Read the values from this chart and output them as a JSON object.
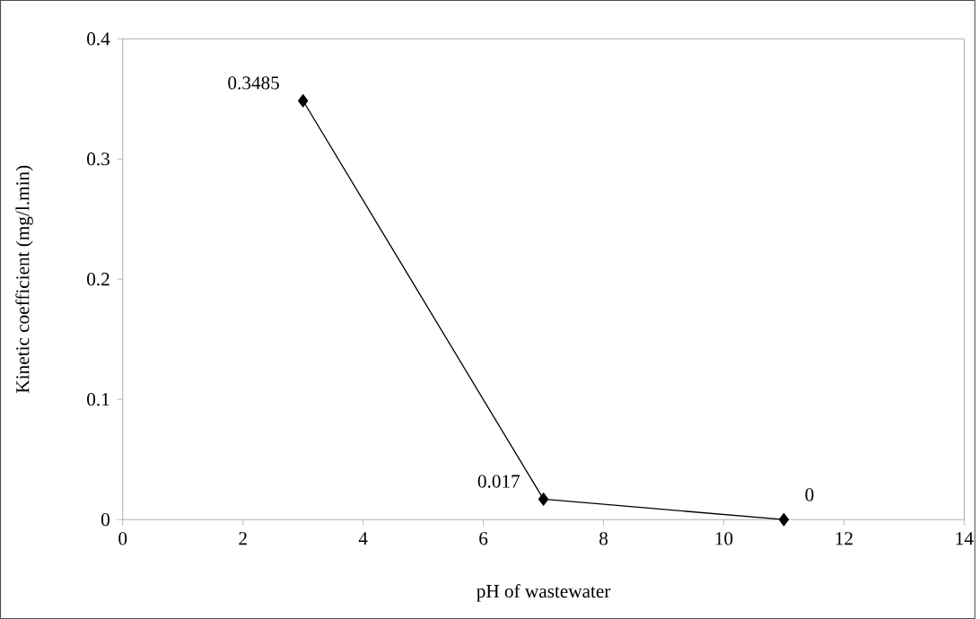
{
  "chart_data": {
    "type": "line",
    "xlabel": "pH of wastewater",
    "ylabel": "Kinetic coefficient (mg/l.min)",
    "x": [
      3,
      7,
      11
    ],
    "series": [
      {
        "color": "#000000",
        "values": [
          0.3485,
          0.017,
          0
        ]
      }
    ],
    "xlim": [
      0,
      14
    ],
    "xticks": [
      0,
      2,
      4,
      6,
      8,
      10,
      12,
      14
    ],
    "ylim": [
      0,
      0.4
    ],
    "yticks": [
      0,
      0.1,
      0.2,
      0.3,
      0.4
    ],
    "data_labels": true,
    "marker": "diamond",
    "line_style": "solid",
    "grid": false
  }
}
